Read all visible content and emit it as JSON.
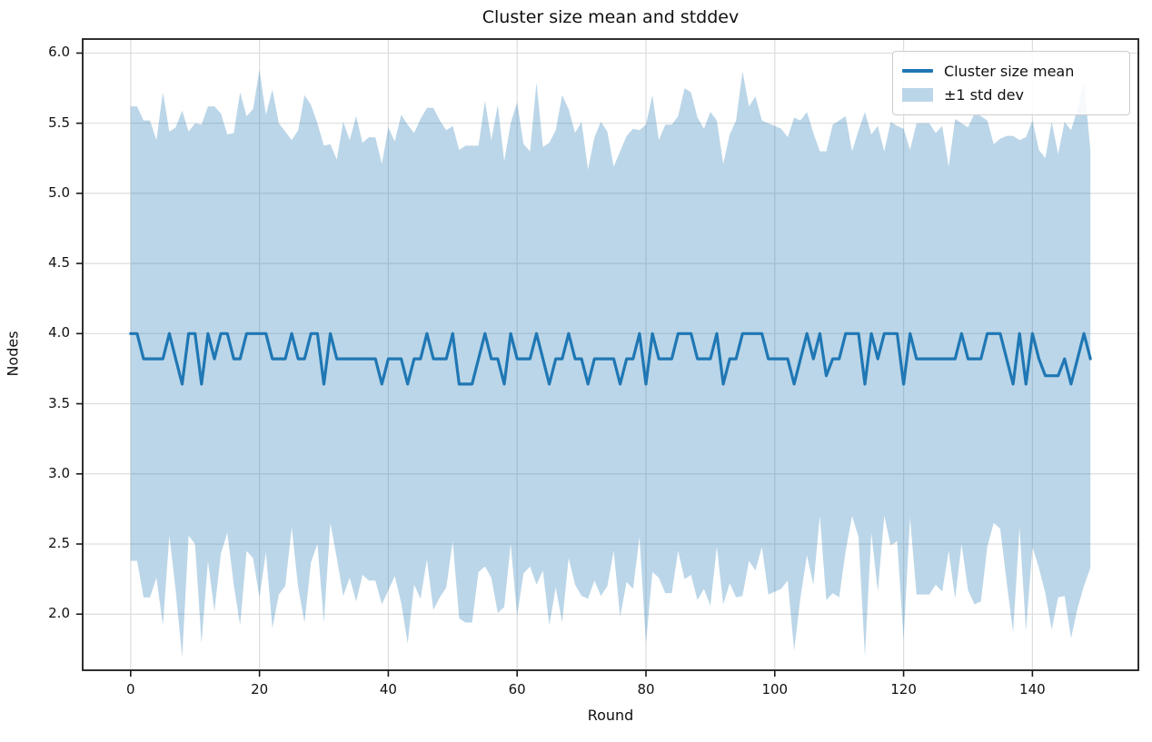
{
  "chart_data": {
    "type": "line",
    "title": "Cluster size mean and stddev",
    "xlabel": "Round",
    "ylabel": "Nodes",
    "grid": true,
    "legend_position": "upper right",
    "legend": [
      {
        "label": "Cluster size mean",
        "swatch": "line",
        "color": "#1f77b4"
      },
      {
        "label": "±1 std dev",
        "swatch": "patch",
        "color": "#1f77b4",
        "alpha": 0.3
      }
    ],
    "line_color": "#1f77b4",
    "band_color": "#1f77b4",
    "band_alpha": 0.3,
    "grid_color": "#dddddd",
    "spine_color": "#1a1a1a",
    "xlim": [
      -7.45,
      156.45
    ],
    "ylim": [
      1.6,
      6.1
    ],
    "xticks": [
      0,
      20,
      40,
      60,
      80,
      100,
      120,
      140
    ],
    "yticks": [
      2.0,
      2.5,
      3.0,
      3.5,
      4.0,
      4.5,
      5.0,
      5.5,
      6.0
    ],
    "x_start": 0,
    "x_step": 1,
    "series": [
      {
        "name": "Cluster size mean",
        "values": [
          4.0,
          4.0,
          3.82,
          3.82,
          3.82,
          3.82,
          4.0,
          3.82,
          3.64,
          4.0,
          4.0,
          3.64,
          4.0,
          3.82,
          4.0,
          4.0,
          3.82,
          3.82,
          4.0,
          4.0,
          4.0,
          4.0,
          3.82,
          3.82,
          3.82,
          4.0,
          3.82,
          3.82,
          4.0,
          4.0,
          3.64,
          4.0,
          3.82,
          3.82,
          3.82,
          3.82,
          3.82,
          3.82,
          3.82,
          3.64,
          3.82,
          3.82,
          3.82,
          3.64,
          3.82,
          3.82,
          4.0,
          3.82,
          3.82,
          3.82,
          4.0,
          3.64,
          3.64,
          3.64,
          3.82,
          4.0,
          3.82,
          3.82,
          3.64,
          4.0,
          3.82,
          3.82,
          3.82,
          4.0,
          3.82,
          3.64,
          3.82,
          3.82,
          4.0,
          3.82,
          3.82,
          3.64,
          3.82,
          3.82,
          3.82,
          3.82,
          3.64,
          3.82,
          3.82,
          4.0,
          3.64,
          4.0,
          3.82,
          3.82,
          3.82,
          4.0,
          4.0,
          4.0,
          3.82,
          3.82,
          3.82,
          4.0,
          3.64,
          3.82,
          3.82,
          4.0,
          4.0,
          4.0,
          4.0,
          3.82,
          3.82,
          3.82,
          3.82,
          3.64,
          3.82,
          4.0,
          3.82,
          4.0,
          3.7,
          3.82,
          3.82,
          4.0,
          4.0,
          4.0,
          3.64,
          4.0,
          3.82,
          4.0,
          4.0,
          4.0,
          3.64,
          4.0,
          3.82,
          3.82,
          3.82,
          3.82,
          3.82,
          3.82,
          3.82,
          4.0,
          3.82,
          3.82,
          3.82,
          4.0,
          4.0,
          4.0,
          3.82,
          3.64,
          4.0,
          3.64,
          4.0,
          3.82,
          3.7,
          3.7,
          3.7,
          3.82,
          3.64,
          3.82,
          4.0,
          3.82
        ]
      },
      {
        "name": "std dev",
        "values": [
          1.62,
          1.62,
          1.7,
          1.7,
          1.56,
          1.9,
          1.44,
          1.65,
          1.95,
          1.44,
          1.5,
          1.85,
          1.62,
          1.8,
          1.57,
          1.42,
          1.61,
          1.9,
          1.55,
          1.6,
          1.88,
          1.56,
          1.92,
          1.68,
          1.62,
          1.38,
          1.63,
          1.88,
          1.63,
          1.5,
          1.7,
          1.35,
          1.42,
          1.69,
          1.56,
          1.73,
          1.54,
          1.58,
          1.58,
          1.57,
          1.65,
          1.55,
          1.74,
          1.85,
          1.61,
          1.71,
          1.61,
          1.79,
          1.7,
          1.63,
          1.48,
          1.67,
          1.7,
          1.7,
          1.52,
          1.66,
          1.56,
          1.81,
          1.59,
          1.5,
          1.83,
          1.53,
          1.48,
          1.79,
          1.51,
          1.72,
          1.63,
          1.88,
          1.6,
          1.61,
          1.69,
          1.53,
          1.58,
          1.69,
          1.62,
          1.37,
          1.66,
          1.59,
          1.64,
          1.45,
          1.85,
          1.7,
          1.56,
          1.67,
          1.67,
          1.55,
          1.75,
          1.72,
          1.72,
          1.64,
          1.76,
          1.52,
          1.57,
          1.6,
          1.7,
          1.87,
          1.62,
          1.69,
          1.52,
          1.68,
          1.66,
          1.64,
          1.58,
          1.9,
          1.7,
          1.58,
          1.61,
          1.3,
          1.6,
          1.67,
          1.7,
          1.55,
          1.3,
          1.45,
          1.94,
          1.42,
          1.66,
          1.3,
          1.51,
          1.48,
          1.82,
          1.31,
          1.68,
          1.68,
          1.68,
          1.61,
          1.66,
          1.37,
          1.71,
          1.5,
          1.65,
          1.75,
          1.73,
          1.52,
          1.35,
          1.39,
          1.59,
          1.77,
          1.38,
          1.76,
          1.52,
          1.49,
          1.55,
          1.81,
          1.58,
          1.69,
          1.81,
          1.78,
          1.8,
          1.49
        ]
      }
    ]
  }
}
